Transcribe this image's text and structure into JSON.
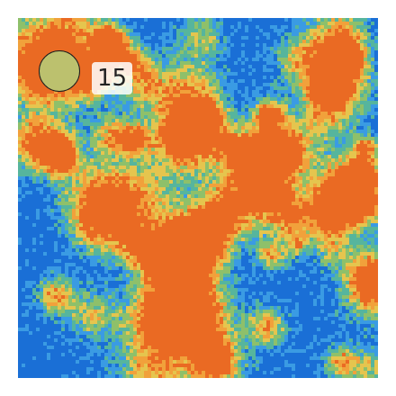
{
  "marker": {
    "count": "15",
    "fill_color": "#bcc16e"
  },
  "heatmap": {
    "palette": [
      "#1a6fd6",
      "#3a9be3",
      "#56b59d",
      "#8ec06a",
      "#e5c54e",
      "#f1a13b",
      "#ea6a23"
    ]
  }
}
